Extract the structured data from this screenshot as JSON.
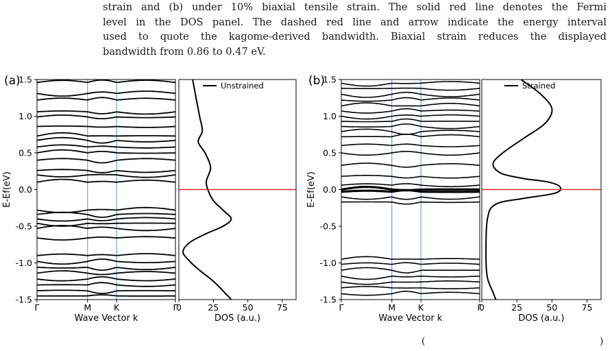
{
  "caption": {
    "line1": "strain and (b) under 10% biaxial tensile strain. The solid red line denotes the Fermi",
    "line2": "level in the DOS panel. The dashed red line and arrow indicate the energy interval",
    "line3": "used to quote the kagome-derived bandwidth. Biaxial strain reduces the displayed",
    "line4": "bandwidth from 0.86 to 0.47 eV."
  },
  "footer": {
    "left_fragment": "(",
    "right_fragment": ")"
  },
  "colors": {
    "band": "#000000",
    "high_symmetry_line": "#7aaed6",
    "fermi_level": "#e8292e",
    "axis": "#000000"
  },
  "chart_data": [
    {
      "type": "line",
      "panel_label": "(a)",
      "subplot": "band structure",
      "xlabel": "Wave Vector k",
      "ylabel": "E-Ef(eV)",
      "ylim": [
        -1.5,
        1.5
      ],
      "x_ticks": [
        "Γ",
        "M",
        "K",
        "Γ"
      ],
      "y_ticks": [
        "-1.5",
        "-1.0",
        "-0.5",
        "0.0",
        "0.5",
        "1.0",
        "1.5"
      ],
      "band_centers": [
        1.46,
        1.31,
        1.22,
        1.06,
        0.99,
        0.86,
        0.73,
        0.67,
        0.58,
        0.5,
        0.4,
        0.26,
        0.2,
        0.1,
        -0.28,
        -0.34,
        -0.4,
        -0.46,
        -0.53,
        -0.66,
        -0.9,
        -0.98,
        -1.06,
        -1.14,
        -1.22,
        -1.3,
        -1.38,
        -1.45
      ]
    },
    {
      "type": "line",
      "panel_label": "(a)",
      "subplot": "DOS",
      "xlabel": "DOS (a.u.)",
      "xlim": [
        0,
        85
      ],
      "ylim": [
        -1.5,
        1.5
      ],
      "x_ticks": [
        "0",
        "25",
        "50",
        "75"
      ],
      "series": [
        {
          "name": "Unstrained",
          "points": [
            [
              10,
              1.5
            ],
            [
              12,
              1.3
            ],
            [
              15,
              1.0
            ],
            [
              17,
              0.8
            ],
            [
              14,
              0.65
            ],
            [
              19,
              0.5
            ],
            [
              23,
              0.3
            ],
            [
              20,
              0.12
            ],
            [
              21,
              0.0
            ],
            [
              25,
              -0.15
            ],
            [
              32,
              -0.28
            ],
            [
              38,
              -0.4
            ],
            [
              32,
              -0.5
            ],
            [
              20,
              -0.6
            ],
            [
              8,
              -0.72
            ],
            [
              3,
              -0.85
            ],
            [
              8,
              -0.98
            ],
            [
              15,
              -1.1
            ],
            [
              25,
              -1.25
            ],
            [
              33,
              -1.4
            ],
            [
              38,
              -1.5
            ]
          ]
        }
      ],
      "fermi_level": 0.0
    },
    {
      "type": "line",
      "panel_label": "(b)",
      "subplot": "band structure",
      "xlabel": "Wave Vector k",
      "ylabel": "E-Ef(eV)",
      "ylim": [
        -1.5,
        1.5
      ],
      "x_ticks": [
        "Γ",
        "M",
        "K",
        "Γ"
      ],
      "y_ticks": [
        "-1.5",
        "-1.0",
        "-0.5",
        "0.0",
        "0.5",
        "1.0",
        "1.5"
      ],
      "band_centers": [
        1.45,
        1.38,
        1.3,
        1.22,
        1.14,
        1.07,
        1.0,
        0.93,
        0.86,
        0.79,
        0.72,
        0.6,
        0.5,
        0.33,
        0.18,
        0.06,
        0.0,
        -0.03,
        -0.1,
        -0.17,
        -0.95,
        -1.02,
        -1.1,
        -1.18,
        -1.26,
        -1.34,
        -1.42
      ]
    },
    {
      "type": "line",
      "panel_label": "(b)",
      "subplot": "DOS",
      "xlabel": "DOS (a.u.)",
      "xlim": [
        0,
        85
      ],
      "ylim": [
        -1.5,
        1.5
      ],
      "x_ticks": [
        "0",
        "25",
        "50",
        "75"
      ],
      "series": [
        {
          "name": "Strained",
          "points": [
            [
              28,
              1.5
            ],
            [
              42,
              1.3
            ],
            [
              50,
              1.1
            ],
            [
              45,
              0.9
            ],
            [
              30,
              0.7
            ],
            [
              15,
              0.5
            ],
            [
              8,
              0.35
            ],
            [
              14,
              0.22
            ],
            [
              30,
              0.15
            ],
            [
              48,
              0.1
            ],
            [
              56,
              0.03
            ],
            [
              52,
              -0.05
            ],
            [
              30,
              -0.12
            ],
            [
              10,
              -0.2
            ],
            [
              4,
              -0.4
            ],
            [
              3,
              -0.9
            ],
            [
              4,
              -1.2
            ],
            [
              8,
              -1.4
            ],
            [
              10,
              -1.5
            ]
          ]
        }
      ],
      "fermi_level": 0.0
    }
  ]
}
